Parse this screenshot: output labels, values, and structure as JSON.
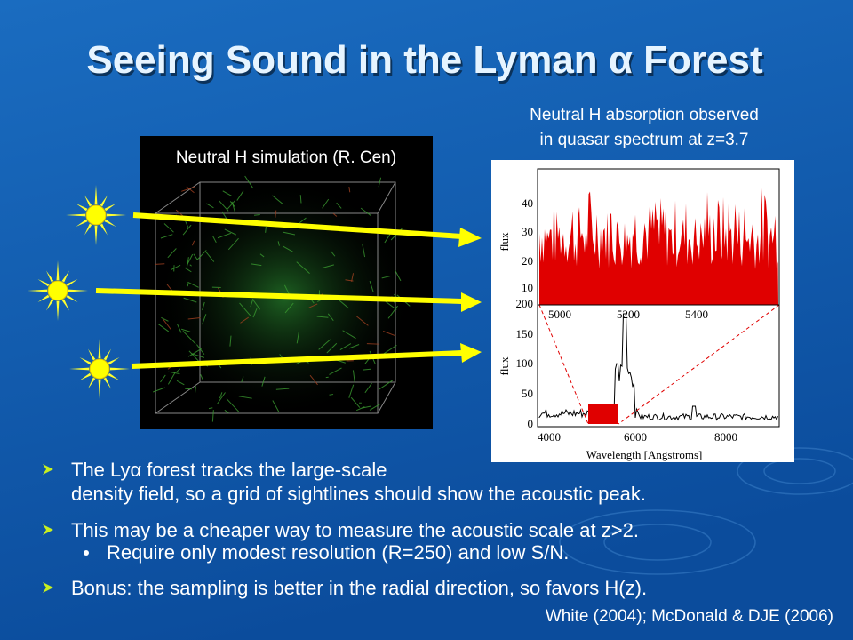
{
  "title": "Seeing Sound in the Lyman α Forest",
  "simulation": {
    "label": "Neutral H simulation (R. Cen)"
  },
  "spectrum": {
    "caption": [
      "Neutral H absorption observed",
      "in quasar spectrum at z=3.7"
    ],
    "top_plot": {
      "y_label": "flux",
      "yticks": [
        "10",
        "20",
        "30",
        "40"
      ],
      "xticks": [
        "5000",
        "5200",
        "5400"
      ]
    },
    "bottom_plot": {
      "y_label": "flux",
      "x_label": "Wavelength [Angstroms]",
      "yticks": [
        "0",
        "50",
        "100",
        "150",
        "200"
      ],
      "xticks": [
        "4000",
        "6000",
        "8000"
      ]
    }
  },
  "bullets": [
    {
      "lines": [
        "The Lyα forest tracks the large-scale",
        "density field, so a grid of sightlines should show the acoustic peak."
      ]
    },
    {
      "lines": [
        "This may be a cheaper way to measure the acoustic scale at z>2."
      ]
    },
    {
      "sub": "Require only modest resolution (R=250) and low S/N."
    },
    {
      "lines": [
        "Bonus: the sampling is better in the radial direction, so favors H(z)."
      ]
    }
  ],
  "reference": "White (2004); McDonald & DJE (2006)"
}
